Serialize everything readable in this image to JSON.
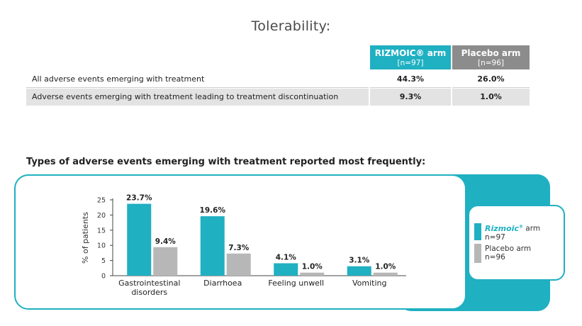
{
  "title": "Tolerability:",
  "table": {
    "columns": [
      {
        "name": "RIZMOIC® arm",
        "n": "[n=97]",
        "color": "#1fb0c2"
      },
      {
        "name": "Placebo arm",
        "n": "[n=96]",
        "color": "#8c8c8c"
      }
    ],
    "rows": [
      {
        "label": "All adverse events emerging with treatment",
        "a": "44.3%",
        "b": "26.0%"
      },
      {
        "label": "Adverse events emerging with treatment leading to treatment discontinuation",
        "a": "9.3%",
        "b": "1.0%"
      }
    ]
  },
  "subtitle": "Types of adverse events emerging with treatment reported most frequently:",
  "legend": {
    "brand": "Rizmoic",
    "brand_mark": "®",
    "brand_suffix": " arm",
    "a_n": "n=97",
    "b_name": "Placebo arm",
    "b_n": "n=96"
  },
  "chart_data": {
    "type": "bar",
    "categories": [
      "Gastrointestinal disorders",
      "Diarrhoea",
      "Feeling unwell",
      "Vomiting"
    ],
    "category_lines": [
      [
        "Gastrointestinal",
        "disorders"
      ],
      [
        "Diarrhoea"
      ],
      [
        "Feeling unwell"
      ],
      [
        "Vomiting"
      ]
    ],
    "series": [
      {
        "name": "Rizmoic arm",
        "color": "#1fb0c2",
        "values": [
          23.7,
          19.6,
          4.1,
          3.1
        ],
        "labels": [
          "23.7%",
          "19.6%",
          "4.1%",
          "3.1%"
        ]
      },
      {
        "name": "Placebo arm",
        "color": "#b7b7b7",
        "values": [
          9.4,
          7.3,
          1.0,
          1.0
        ],
        "labels": [
          "9.4%",
          "7.3%",
          "1.0%",
          "1.0%"
        ]
      }
    ],
    "ylabel": "% of patients",
    "ylim": [
      0,
      25
    ],
    "yticks": [
      0,
      5,
      10,
      15,
      20,
      25
    ],
    "grid": false,
    "legend_position": "right"
  }
}
